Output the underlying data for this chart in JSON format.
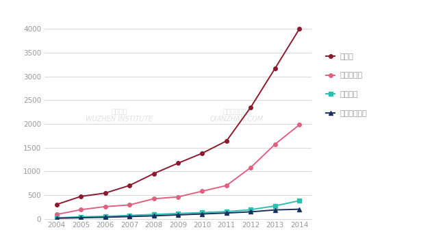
{
  "years": [
    2004,
    2005,
    2006,
    2007,
    2008,
    2009,
    2010,
    2011,
    2012,
    2013,
    2014
  ],
  "robot": [
    300,
    470,
    540,
    700,
    950,
    1170,
    1380,
    1640,
    2350,
    3170,
    4000
  ],
  "computer_vision": [
    90,
    190,
    255,
    290,
    420,
    460,
    580,
    700,
    1080,
    1570,
    1980
  ],
  "machine_learning": [
    20,
    40,
    50,
    70,
    90,
    110,
    130,
    150,
    190,
    270,
    380
  ],
  "nlp": [
    10,
    20,
    30,
    45,
    60,
    80,
    100,
    120,
    145,
    185,
    200
  ],
  "robot_color": "#8b1a2e",
  "cv_color": "#e06080",
  "ml_color": "#2abfb0",
  "nlp_color": "#1a2f5e",
  "robot_label": "机器人",
  "cv_label": "计算机视觉",
  "ml_label": "机器学习",
  "nlp_label": "自然语言处理",
  "ylim": [
    0,
    4200
  ],
  "yticks": [
    0,
    500,
    1000,
    1500,
    2000,
    2500,
    3000,
    3500,
    4000
  ],
  "background_color": "#ffffff",
  "grid_color": "#d8d8d8",
  "tick_color": "#999999",
  "linewidth": 1.4,
  "markersize": 4
}
